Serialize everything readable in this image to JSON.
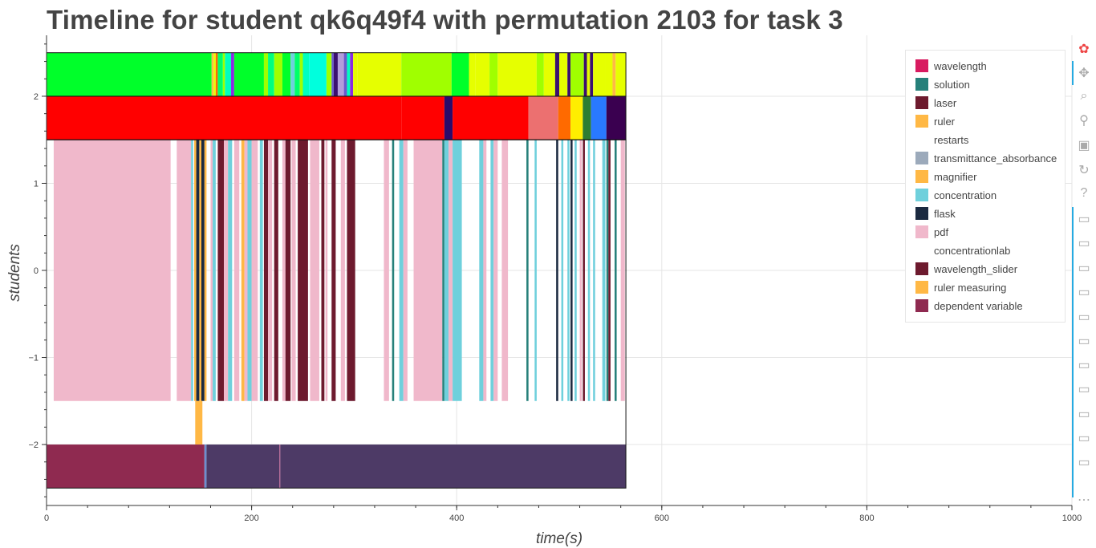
{
  "title": "Timeline for student qk6q49f4 with permutation 2103 for task 3",
  "chart_data": {
    "type": "timeline",
    "xlabel": "time(s)",
    "ylabel": "students",
    "xlim": [
      0,
      1000
    ],
    "ylim": [
      -2.7,
      2.7
    ],
    "xticks": [
      0,
      200,
      400,
      600,
      800,
      1000
    ],
    "yticks": [
      -2,
      -1,
      0,
      1,
      2
    ],
    "ytick_labels": [
      "−2",
      "−1",
      "0",
      "1",
      "2"
    ],
    "grid": true,
    "legend_position": "top-right",
    "legend": [
      {
        "label": "wavelength",
        "color": "#d81b60"
      },
      {
        "label": "solution",
        "color": "#26807a"
      },
      {
        "label": "laser",
        "color": "#6d1a2e"
      },
      {
        "label": "ruler",
        "color": "#ffb845"
      },
      {
        "label": "restarts",
        "color": ""
      },
      {
        "label": "transmittance_absorbance",
        "color": "#9caabb"
      },
      {
        "label": "magnifier",
        "color": "#ffb845"
      },
      {
        "label": "concentration",
        "color": "#6fd0dc"
      },
      {
        "label": "flask",
        "color": "#1b2a40"
      },
      {
        "label": "pdf",
        "color": "#f0b8cb"
      },
      {
        "label": "concentrationlab",
        "color": ""
      },
      {
        "label": "wavelength_slider",
        "color": "#6d1a2e"
      },
      {
        "label": "ruler measuring",
        "color": "#ffb845"
      },
      {
        "label": "dependent variable",
        "color": "#8f2a50"
      }
    ],
    "rows": [
      {
        "y_range": [
          2,
          2.5
        ],
        "segments": [
          {
            "x0": 0,
            "x1": 161,
            "color": "#00ff2a"
          },
          {
            "x0": 161,
            "x1": 163,
            "color": "#ffb845"
          },
          {
            "x0": 163,
            "x1": 165,
            "color": "#e6ff00"
          },
          {
            "x0": 165,
            "x1": 167,
            "color": "#ff6a00"
          },
          {
            "x0": 167,
            "x1": 172,
            "color": "#00ff6a"
          },
          {
            "x0": 172,
            "x1": 174,
            "color": "#a0ff00"
          },
          {
            "x0": 174,
            "x1": 180,
            "color": "#00ffbf"
          },
          {
            "x0": 180,
            "x1": 183,
            "color": "#8a2be2"
          },
          {
            "x0": 183,
            "x1": 212,
            "color": "#00ff2a"
          },
          {
            "x0": 212,
            "x1": 216,
            "color": "#a0ff00"
          },
          {
            "x0": 216,
            "x1": 222,
            "color": "#00ff80"
          },
          {
            "x0": 222,
            "x1": 230,
            "color": "#a0ff00"
          },
          {
            "x0": 230,
            "x1": 238,
            "color": "#00ff2a"
          },
          {
            "x0": 238,
            "x1": 242,
            "color": "#6fd0dc"
          },
          {
            "x0": 242,
            "x1": 247,
            "color": "#00ff6a"
          },
          {
            "x0": 247,
            "x1": 250,
            "color": "#a0ff00"
          },
          {
            "x0": 250,
            "x1": 256,
            "color": "#00ffbf"
          },
          {
            "x0": 256,
            "x1": 273,
            "color": "#00ffdd"
          },
          {
            "x0": 273,
            "x1": 278,
            "color": "#a0ff00"
          },
          {
            "x0": 278,
            "x1": 280,
            "color": "#6a5acd"
          },
          {
            "x0": 280,
            "x1": 284,
            "color": "#3a1070"
          },
          {
            "x0": 284,
            "x1": 290,
            "color": "#b39ddb"
          },
          {
            "x0": 290,
            "x1": 293,
            "color": "#6a5acd"
          },
          {
            "x0": 293,
            "x1": 296,
            "color": "#00ffbf"
          },
          {
            "x0": 296,
            "x1": 299,
            "color": "#8a2be2"
          },
          {
            "x0": 299,
            "x1": 303,
            "color": "#e6ff00"
          },
          {
            "x0": 303,
            "x1": 346,
            "color": "#e6ff00"
          },
          {
            "x0": 346,
            "x1": 395,
            "color": "#a0ff00"
          },
          {
            "x0": 395,
            "x1": 412,
            "color": "#00ff2a"
          },
          {
            "x0": 412,
            "x1": 418,
            "color": "#e6ff00"
          },
          {
            "x0": 418,
            "x1": 432,
            "color": "#e6ff00"
          },
          {
            "x0": 432,
            "x1": 440,
            "color": "#a0ff00"
          },
          {
            "x0": 440,
            "x1": 478,
            "color": "#e6ff00"
          },
          {
            "x0": 478,
            "x1": 485,
            "color": "#a0ff00"
          },
          {
            "x0": 485,
            "x1": 496,
            "color": "#e6ff00"
          },
          {
            "x0": 496,
            "x1": 500,
            "color": "#3a1070"
          },
          {
            "x0": 500,
            "x1": 508,
            "color": "#e6ff00"
          },
          {
            "x0": 508,
            "x1": 511,
            "color": "#3a1070"
          },
          {
            "x0": 511,
            "x1": 524,
            "color": "#a0ff00"
          },
          {
            "x0": 524,
            "x1": 527,
            "color": "#3a1070"
          },
          {
            "x0": 527,
            "x1": 530,
            "color": "#e6ff00"
          },
          {
            "x0": 530,
            "x1": 533,
            "color": "#3a1070"
          },
          {
            "x0": 533,
            "x1": 545,
            "color": "#e6ff00"
          },
          {
            "x0": 545,
            "x1": 552,
            "color": "#e6ff00"
          },
          {
            "x0": 552,
            "x1": 555,
            "color": "#ffb845"
          },
          {
            "x0": 555,
            "x1": 565,
            "color": "#e6ff00"
          }
        ]
      },
      {
        "y_range": [
          1.5,
          2
        ],
        "segments": [
          {
            "x0": 0,
            "x1": 346,
            "color": "#ff0000"
          },
          {
            "x0": 346,
            "x1": 388,
            "color": "#ff0000"
          },
          {
            "x0": 388,
            "x1": 396,
            "color": "#2a0b6b"
          },
          {
            "x0": 396,
            "x1": 470,
            "color": "#ff0000"
          },
          {
            "x0": 470,
            "x1": 499,
            "color": "#ec7070"
          },
          {
            "x0": 499,
            "x1": 511,
            "color": "#ff6a00"
          },
          {
            "x0": 511,
            "x1": 523,
            "color": "#ffee00"
          },
          {
            "x0": 523,
            "x1": 531,
            "color": "#2e7d32"
          },
          {
            "x0": 531,
            "x1": 546,
            "color": "#2979ff"
          },
          {
            "x0": 546,
            "x1": 565,
            "color": "#3a0050"
          }
        ]
      },
      {
        "y_range": [
          -1.5,
          1.5
        ],
        "segments": [
          {
            "x0": 7,
            "x1": 121,
            "color": "#f0b8cb"
          },
          {
            "x0": 127,
            "x1": 141,
            "color": "#f0b8cb"
          },
          {
            "x0": 141,
            "x1": 143,
            "color": "#6fd0dc"
          },
          {
            "x0": 144,
            "x1": 146,
            "color": "#ffb845"
          },
          {
            "x0": 146,
            "x1": 149,
            "color": "#1b2a40"
          },
          {
            "x0": 149,
            "x1": 151,
            "color": "#ffb845"
          },
          {
            "x0": 151,
            "x1": 154,
            "color": "#1b2a40"
          },
          {
            "x0": 154,
            "x1": 156,
            "color": "#ffb845"
          },
          {
            "x0": 160,
            "x1": 162,
            "color": "#f0b8cb"
          },
          {
            "x0": 162,
            "x1": 165,
            "color": "#6fd0dc"
          },
          {
            "x0": 167,
            "x1": 173,
            "color": "#6d1a2e"
          },
          {
            "x0": 173,
            "x1": 177,
            "color": "#f0b8cb"
          },
          {
            "x0": 177,
            "x1": 181,
            "color": "#6fd0dc"
          },
          {
            "x0": 183,
            "x1": 188,
            "color": "#f0b8cb"
          },
          {
            "x0": 190,
            "x1": 193,
            "color": "#ffb845"
          },
          {
            "x0": 193,
            "x1": 196,
            "color": "#f0b8cb"
          },
          {
            "x0": 196,
            "x1": 200,
            "color": "#6fd0dc"
          },
          {
            "x0": 200,
            "x1": 206,
            "color": "#f0b8cb"
          },
          {
            "x0": 208,
            "x1": 211,
            "color": "#6fd0dc"
          },
          {
            "x0": 212,
            "x1": 216,
            "color": "#6d1a2e"
          },
          {
            "x0": 216,
            "x1": 220,
            "color": "#f0b8cb"
          },
          {
            "x0": 222,
            "x1": 226,
            "color": "#6d1a2e"
          },
          {
            "x0": 230,
            "x1": 233,
            "color": "#f0b8cb"
          },
          {
            "x0": 233,
            "x1": 238,
            "color": "#6d1a2e"
          },
          {
            "x0": 239,
            "x1": 243,
            "color": "#f0b8cb"
          },
          {
            "x0": 245,
            "x1": 255,
            "color": "#6d1a2e"
          },
          {
            "x0": 257,
            "x1": 266,
            "color": "#f0b8cb"
          },
          {
            "x0": 268,
            "x1": 271,
            "color": "#6d1a2e"
          },
          {
            "x0": 272,
            "x1": 274,
            "color": "#f0b8cb"
          },
          {
            "x0": 278,
            "x1": 282,
            "color": "#6d1a2e"
          },
          {
            "x0": 287,
            "x1": 291,
            "color": "#f0b8cb"
          },
          {
            "x0": 293,
            "x1": 301,
            "color": "#6d1a2e"
          },
          {
            "x0": 329,
            "x1": 334,
            "color": "#f0b8cb"
          },
          {
            "x0": 337,
            "x1": 339,
            "color": "#26807a"
          },
          {
            "x0": 344,
            "x1": 348,
            "color": "#6fd0dc"
          },
          {
            "x0": 348,
            "x1": 352,
            "color": "#f0b8cb"
          },
          {
            "x0": 358,
            "x1": 386,
            "color": "#f0b8cb"
          },
          {
            "x0": 386,
            "x1": 388,
            "color": "#26807a"
          },
          {
            "x0": 388,
            "x1": 392,
            "color": "#6fd0dc"
          },
          {
            "x0": 392,
            "x1": 396,
            "color": "#f0b8cb"
          },
          {
            "x0": 396,
            "x1": 405,
            "color": "#6fd0dc"
          },
          {
            "x0": 422,
            "x1": 426,
            "color": "#6fd0dc"
          },
          {
            "x0": 426,
            "x1": 429,
            "color": "#f0b8cb"
          },
          {
            "x0": 433,
            "x1": 436,
            "color": "#6fd0dc"
          },
          {
            "x0": 436,
            "x1": 440,
            "color": "#f0b8cb"
          },
          {
            "x0": 444,
            "x1": 450,
            "color": "#f0b8cb"
          },
          {
            "x0": 468,
            "x1": 470,
            "color": "#26807a"
          },
          {
            "x0": 476,
            "x1": 478,
            "color": "#6fd0dc"
          },
          {
            "x0": 497,
            "x1": 499,
            "color": "#1b2a40"
          },
          {
            "x0": 502,
            "x1": 504,
            "color": "#6fd0dc"
          },
          {
            "x0": 508,
            "x1": 510,
            "color": "#6fd0dc"
          },
          {
            "x0": 511,
            "x1": 513,
            "color": "#1b2a40"
          },
          {
            "x0": 515,
            "x1": 517,
            "color": "#6fd0dc"
          },
          {
            "x0": 520,
            "x1": 522,
            "color": "#f0b8cb"
          },
          {
            "x0": 523,
            "x1": 525,
            "color": "#6d1a2e"
          },
          {
            "x0": 528,
            "x1": 530,
            "color": "#6fd0dc"
          },
          {
            "x0": 533,
            "x1": 535,
            "color": "#6fd0dc"
          },
          {
            "x0": 542,
            "x1": 545,
            "color": "#6fd0dc"
          },
          {
            "x0": 546,
            "x1": 548,
            "color": "#26807a"
          },
          {
            "x0": 548,
            "x1": 550,
            "color": "#6d1a2e"
          },
          {
            "x0": 554,
            "x1": 556,
            "color": "#26807a"
          },
          {
            "x0": 560,
            "x1": 564,
            "color": "#f0b8cb"
          }
        ]
      },
      {
        "y_range": [
          -2,
          -1.5
        ],
        "segments": [
          {
            "x0": 145,
            "x1": 152,
            "color": "#ffb845"
          }
        ]
      },
      {
        "y_range": [
          -2.5,
          -2
        ],
        "segments": [
          {
            "x0": 0,
            "x1": 154,
            "color": "#8f2a50"
          },
          {
            "x0": 154,
            "x1": 156,
            "color": "#6a8fd0"
          },
          {
            "x0": 156,
            "x1": 227,
            "color": "#4d3a66"
          },
          {
            "x0": 227,
            "x1": 228,
            "color": "#b06090"
          },
          {
            "x0": 228,
            "x1": 565,
            "color": "#4d3a66"
          }
        ]
      }
    ],
    "frame_ranges": [
      {
        "x0": 0,
        "x1": 565,
        "y0": 2,
        "y1": 2.5
      },
      {
        "x0": 0,
        "x1": 565,
        "y0": 1.5,
        "y1": 2
      },
      {
        "x0": 0,
        "x1": 565,
        "y0": -2.5,
        "y1": 1.5
      }
    ]
  },
  "toolbar": {
    "tools": [
      {
        "name": "bokeh-logo-icon",
        "glyph": "✿",
        "interactable": false
      },
      {
        "name": "pan-tool-icon",
        "glyph": "✥",
        "interactable": true
      },
      {
        "name": "box-zoom-tool-icon",
        "glyph": "⌕",
        "interactable": true
      },
      {
        "name": "wheel-zoom-tool-icon",
        "glyph": "⚲",
        "interactable": true
      },
      {
        "name": "save-tool-icon",
        "glyph": "▣",
        "interactable": true
      },
      {
        "name": "reset-tool-icon",
        "glyph": "↻",
        "interactable": true
      },
      {
        "name": "help-tool-icon",
        "glyph": "?",
        "interactable": true
      },
      {
        "name": "hover-tool-icon",
        "glyph": "▭",
        "interactable": true
      },
      {
        "name": "hover-tool-icon",
        "glyph": "▭",
        "interactable": true
      },
      {
        "name": "hover-tool-icon",
        "glyph": "▭",
        "interactable": true
      },
      {
        "name": "hover-tool-icon",
        "glyph": "▭",
        "interactable": true
      },
      {
        "name": "hover-tool-icon",
        "glyph": "▭",
        "interactable": true
      },
      {
        "name": "hover-tool-icon",
        "glyph": "▭",
        "interactable": true
      },
      {
        "name": "hover-tool-icon",
        "glyph": "▭",
        "interactable": true
      },
      {
        "name": "hover-tool-icon",
        "glyph": "▭",
        "interactable": true
      },
      {
        "name": "hover-tool-icon",
        "glyph": "▭",
        "interactable": true
      },
      {
        "name": "hover-tool-icon",
        "glyph": "▭",
        "interactable": true
      },
      {
        "name": "hover-tool-icon",
        "glyph": "▭",
        "interactable": true
      },
      {
        "name": "more-tools-icon",
        "glyph": "⋯",
        "interactable": true
      }
    ]
  }
}
